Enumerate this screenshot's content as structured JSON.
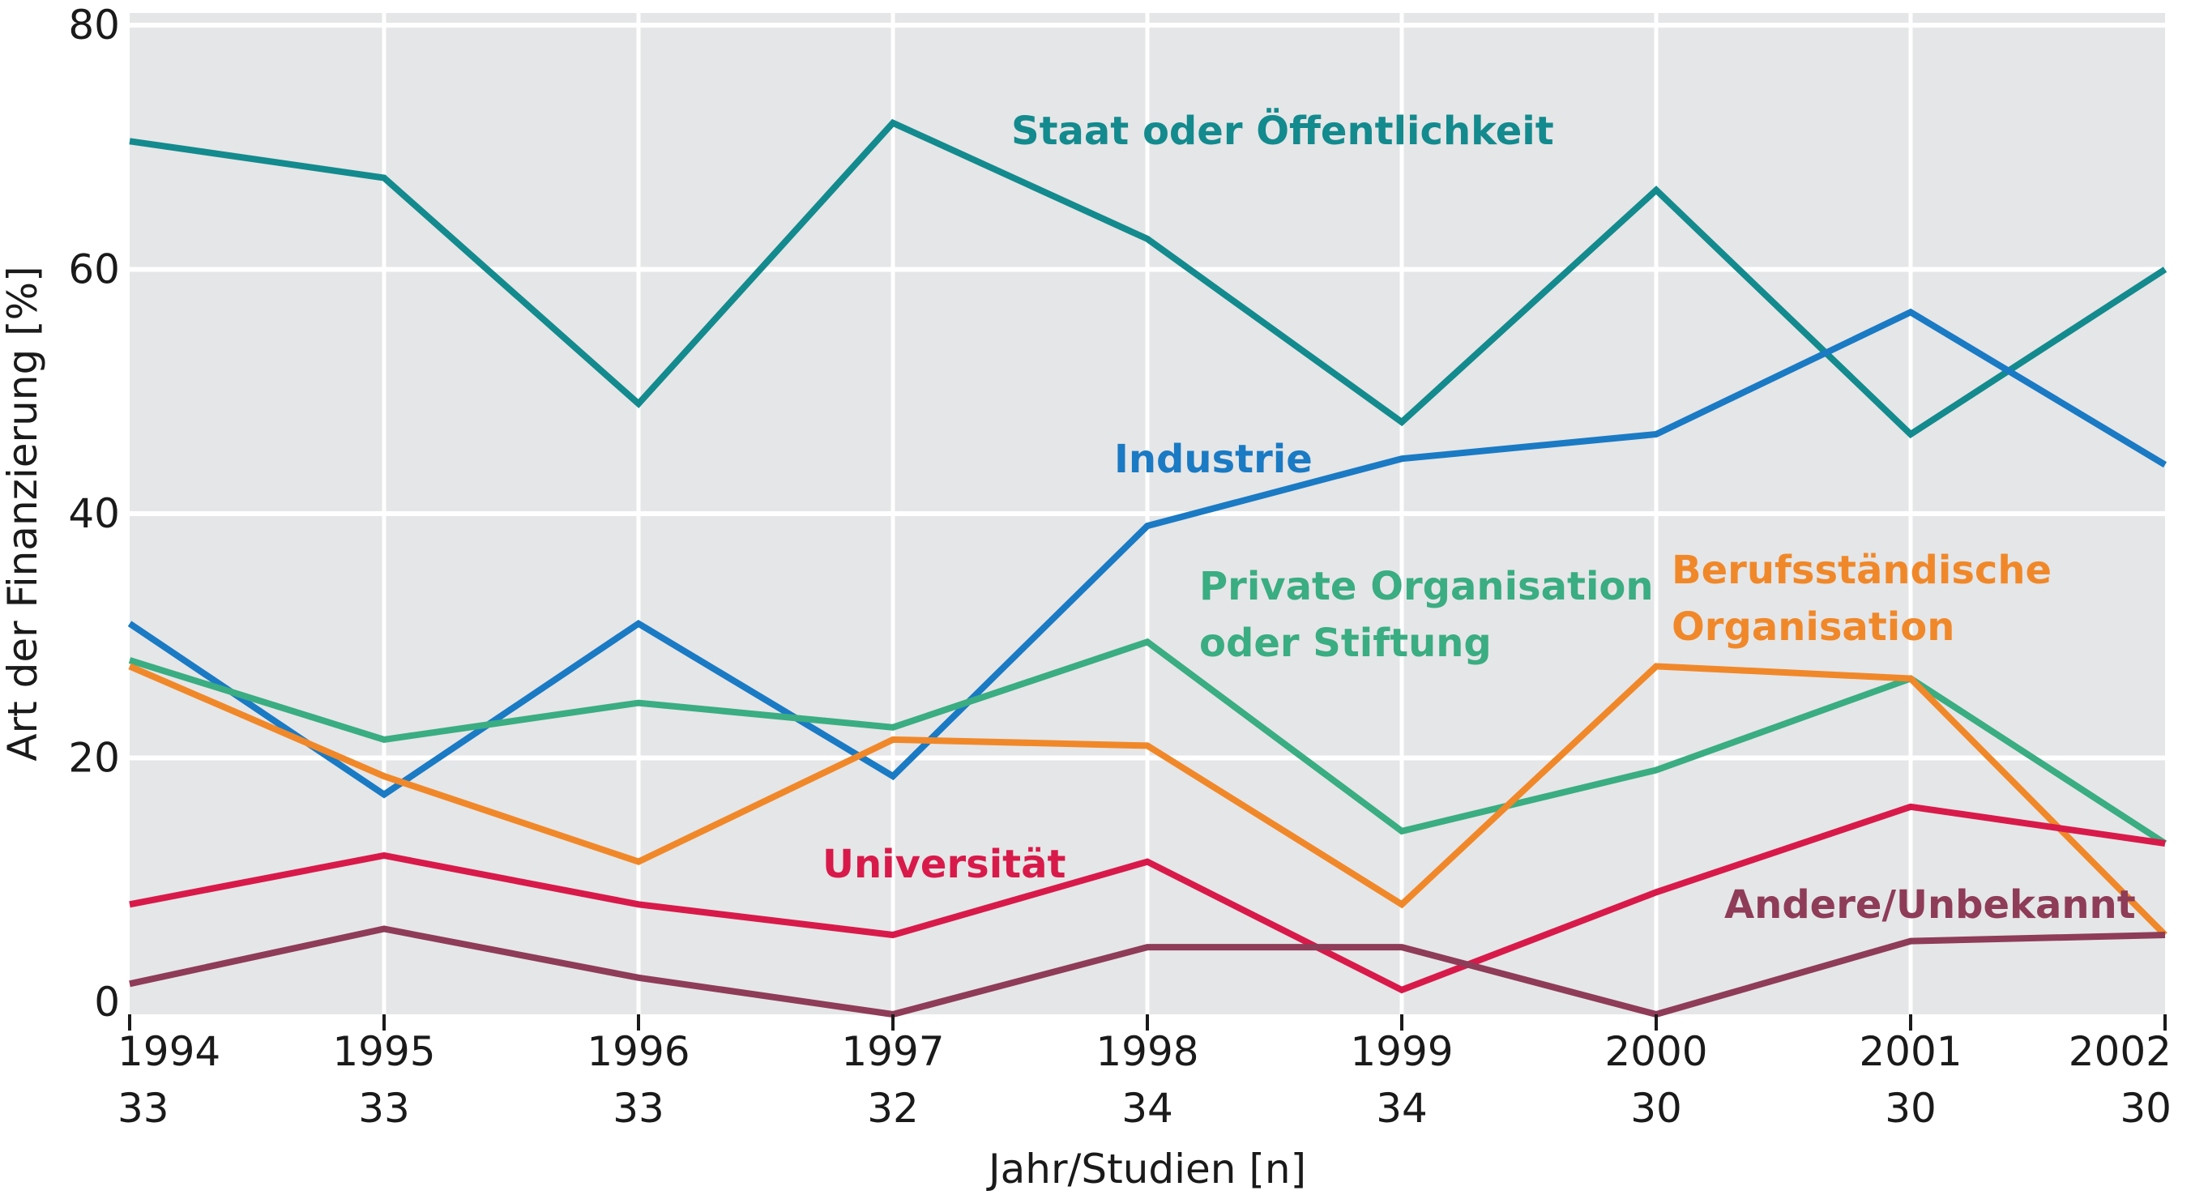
{
  "chart_data": {
    "type": "line",
    "title": "",
    "xlabel": "Jahr/Studien [n]",
    "ylabel": "Art der Finanzierung [%]",
    "ylim": [
      -1,
      81
    ],
    "yticks": [
      0,
      20,
      40,
      60,
      80
    ],
    "grid": "horizontal",
    "categories": [
      "1994",
      "1995",
      "1996",
      "1997",
      "1998",
      "1999",
      "2000",
      "2001",
      "2002"
    ],
    "studies_n": [
      "33",
      "33",
      "33",
      "32",
      "34",
      "34",
      "30",
      "30",
      "30"
    ],
    "series": [
      {
        "name": "Staat oder Öffentlichkeit",
        "color": "#138a8e",
        "values": [
          70.5,
          67.5,
          49,
          72,
          62.5,
          47.5,
          66.5,
          46.5,
          60
        ]
      },
      {
        "name": "Industrie",
        "color": "#1a7ac4",
        "values": [
          31,
          17,
          31,
          18.5,
          39,
          44.5,
          46.5,
          56.5,
          44
        ]
      },
      {
        "name": "Private Organisation oder Stiftung",
        "color": "#3aad82",
        "values": [
          28,
          21.5,
          24.5,
          22.5,
          29.5,
          14,
          19,
          26.5,
          13
        ]
      },
      {
        "name": "Berufsständische Organisation",
        "color": "#f0882a",
        "values": [
          27.5,
          18.5,
          11.5,
          21.5,
          21,
          8,
          27.5,
          26.5,
          5.5
        ]
      },
      {
        "name": "Universität",
        "color": "#d81a4a",
        "values": [
          8,
          12,
          8,
          5.5,
          11.5,
          1,
          9,
          16,
          13
        ]
      },
      {
        "name": "Andere/Unbekannt",
        "color": "#8e3c58",
        "values": [
          1.5,
          6,
          2,
          -1,
          4.5,
          4.5,
          -1,
          5,
          5.5
        ]
      }
    ]
  }
}
